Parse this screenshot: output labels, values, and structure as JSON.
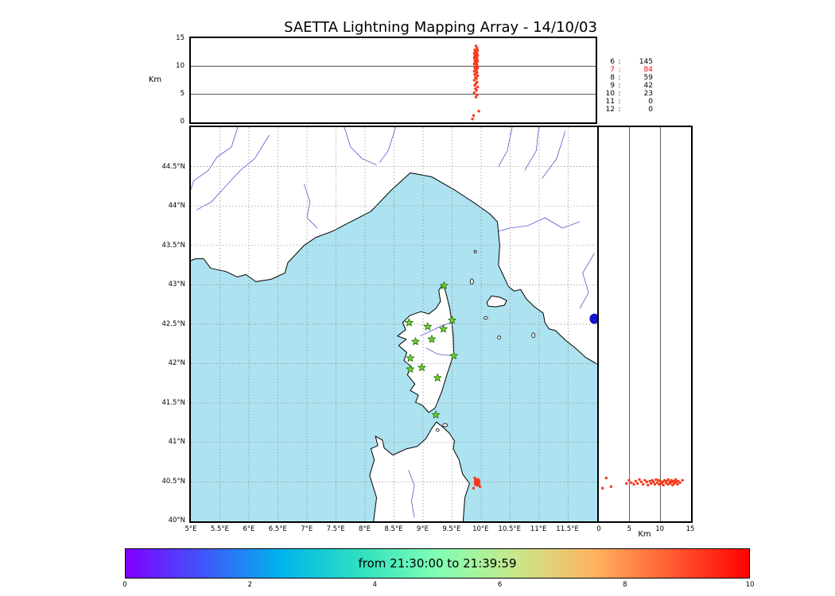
{
  "title": "SAETTA Lightning Mapping Array - 14/10/03",
  "chart_data": {
    "type": "scatter",
    "title": "SAETTA Lightning Mapping Array - 14/10/03",
    "panels": [
      {
        "id": "altitude-vs-longitude",
        "ylabel": "Km",
        "xlim": [
          5,
          12
        ],
        "ylim": [
          0,
          15
        ],
        "grid": [
          5,
          10
        ],
        "yticks": [
          {
            "v": 0,
            "t": "0"
          },
          {
            "v": 5,
            "t": "5"
          },
          {
            "v": 10,
            "t": "10"
          },
          {
            "v": 15,
            "t": "15"
          }
        ]
      },
      {
        "id": "map-longitude-latitude",
        "xlim": [
          5,
          12
        ],
        "ylim": [
          40,
          45
        ],
        "grid_step": 0.5,
        "xticks": [
          {
            "v": 5,
            "t": "5°E"
          },
          {
            "v": 5.5,
            "t": "5.5°E"
          },
          {
            "v": 6,
            "t": "6°E"
          },
          {
            "v": 6.5,
            "t": "6.5°E"
          },
          {
            "v": 7,
            "t": "7°E"
          },
          {
            "v": 7.5,
            "t": "7.5°E"
          },
          {
            "v": 8,
            "t": "8°E"
          },
          {
            "v": 8.5,
            "t": "8.5°E"
          },
          {
            "v": 9,
            "t": "9°E"
          },
          {
            "v": 9.5,
            "t": "9.5°E"
          },
          {
            "v": 10,
            "t": "10°E"
          },
          {
            "v": 10.5,
            "t": "10.5°E"
          },
          {
            "v": 11,
            "t": "11°E"
          },
          {
            "v": 11.5,
            "t": "11.5°E"
          }
        ],
        "yticks": [
          {
            "v": 44.5,
            "t": "44.5°N"
          },
          {
            "v": 44,
            "t": "44°N"
          },
          {
            "v": 43.5,
            "t": "43.5°N"
          },
          {
            "v": 43,
            "t": "43°N"
          },
          {
            "v": 42.5,
            "t": "42.5°N"
          },
          {
            "v": 42,
            "t": "42°N"
          },
          {
            "v": 41.5,
            "t": "41.5°N"
          },
          {
            "v": 41,
            "t": "41°N"
          },
          {
            "v": 40.5,
            "t": "40.5°N"
          },
          {
            "v": 40,
            "t": "40°N"
          }
        ]
      },
      {
        "id": "altitude-vs-latitude",
        "xlabel": "Km",
        "xlim": [
          0,
          15
        ],
        "ylim": [
          40,
          45
        ],
        "grid": [
          5,
          10
        ],
        "xticks": [
          {
            "v": 0,
            "t": "0"
          },
          {
            "v": 5,
            "t": "5"
          },
          {
            "v": 10,
            "t": "10"
          },
          {
            "v": 15,
            "t": "15"
          }
        ]
      }
    ],
    "station_counts": {
      "sep": ":",
      "highlight_color": "#ff0000",
      "rows": [
        {
          "stations": "6",
          "count": "145"
        },
        {
          "stations": "7",
          "count": "84",
          "highlight": true
        },
        {
          "stations": "8",
          "count": "59"
        },
        {
          "stations": "9",
          "count": "42"
        },
        {
          "stations": "10",
          "count": "23"
        },
        {
          "stations": "11",
          "count": "0"
        },
        {
          "stations": "12",
          "count": "0"
        }
      ]
    },
    "colorbar": {
      "label": "from 21:30:00 to 21:39:59",
      "tick_labels": [
        "0",
        "2",
        "4",
        "6",
        "8",
        "10"
      ],
      "range": [
        0,
        10
      ],
      "gradient": [
        "#8000ff",
        "#4056fa",
        "#00b4ec",
        "#2ee0c0",
        "#80ffb4",
        "#c8e88a",
        "#ffb461",
        "#ff5c31",
        "#ff0000"
      ]
    },
    "colors": {
      "sea": "#ade2f0",
      "land": "#ffffff",
      "grid": "#8a8a8a",
      "rivers": "#4040cc",
      "lake": "#1515cd",
      "sources": "#f63a1e",
      "stations": "#6fd62c",
      "stations_edge": "#2d7a12"
    },
    "sources_format": [
      "lon_degE",
      "lat_degN",
      "alt_km"
    ],
    "sources": [
      [
        9.93,
        40.52,
        13.6
      ],
      [
        9.95,
        40.49,
        13.2
      ],
      [
        9.91,
        40.51,
        12.9
      ],
      [
        9.96,
        40.47,
        12.8
      ],
      [
        9.92,
        40.5,
        12.6
      ],
      [
        9.94,
        40.53,
        12.5
      ],
      [
        9.9,
        40.48,
        12.3
      ],
      [
        9.95,
        40.51,
        12.2
      ],
      [
        9.92,
        40.46,
        12.0
      ],
      [
        9.96,
        40.5,
        11.9
      ],
      [
        9.91,
        40.52,
        11.8
      ],
      [
        9.94,
        40.48,
        11.6
      ],
      [
        9.9,
        40.5,
        11.5
      ],
      [
        9.95,
        40.53,
        11.3
      ],
      [
        9.93,
        40.47,
        11.2
      ],
      [
        9.91,
        40.51,
        11.0
      ],
      [
        9.96,
        40.49,
        10.9
      ],
      [
        9.92,
        40.52,
        10.7
      ],
      [
        9.94,
        40.46,
        10.5
      ],
      [
        9.9,
        40.5,
        10.4
      ],
      [
        9.95,
        40.48,
        10.2
      ],
      [
        9.93,
        40.51,
        10.0
      ],
      [
        9.91,
        40.47,
        9.8
      ],
      [
        9.96,
        40.52,
        9.7
      ],
      [
        9.92,
        40.49,
        9.5
      ],
      [
        9.94,
        40.53,
        9.3
      ],
      [
        9.9,
        40.47,
        9.1
      ],
      [
        9.95,
        40.5,
        8.9
      ],
      [
        9.93,
        40.52,
        8.7
      ],
      [
        9.91,
        40.48,
        8.5
      ],
      [
        9.96,
        40.51,
        8.3
      ],
      [
        9.92,
        40.46,
        8.0
      ],
      [
        9.94,
        40.5,
        7.8
      ],
      [
        9.9,
        40.52,
        7.5
      ],
      [
        9.95,
        40.47,
        7.2
      ],
      [
        9.93,
        40.5,
        6.9
      ],
      [
        9.91,
        40.53,
        6.6
      ],
      [
        9.96,
        40.48,
        6.3
      ],
      [
        9.92,
        40.51,
        6.0
      ],
      [
        9.94,
        40.47,
        5.7
      ],
      [
        9.9,
        40.49,
        5.3
      ],
      [
        9.95,
        40.52,
        4.9
      ],
      [
        9.93,
        40.48,
        4.5
      ],
      [
        9.98,
        40.44,
        2.0
      ],
      [
        9.89,
        40.55,
        1.2
      ],
      [
        9.87,
        40.42,
        0.6
      ]
    ],
    "stations_format": [
      "lon_degE",
      "lat_degN"
    ],
    "stations": [
      [
        9.36,
        42.99
      ],
      [
        8.76,
        42.52
      ],
      [
        9.08,
        42.47
      ],
      [
        9.35,
        42.44
      ],
      [
        9.5,
        42.55
      ],
      [
        8.87,
        42.28
      ],
      [
        9.15,
        42.31
      ],
      [
        8.78,
        42.07
      ],
      [
        9.53,
        42.1
      ],
      [
        8.78,
        41.93
      ],
      [
        8.98,
        41.95
      ],
      [
        9.25,
        41.82
      ],
      [
        9.22,
        41.35
      ]
    ],
    "lake": [
      11.95,
      42.57
    ]
  }
}
